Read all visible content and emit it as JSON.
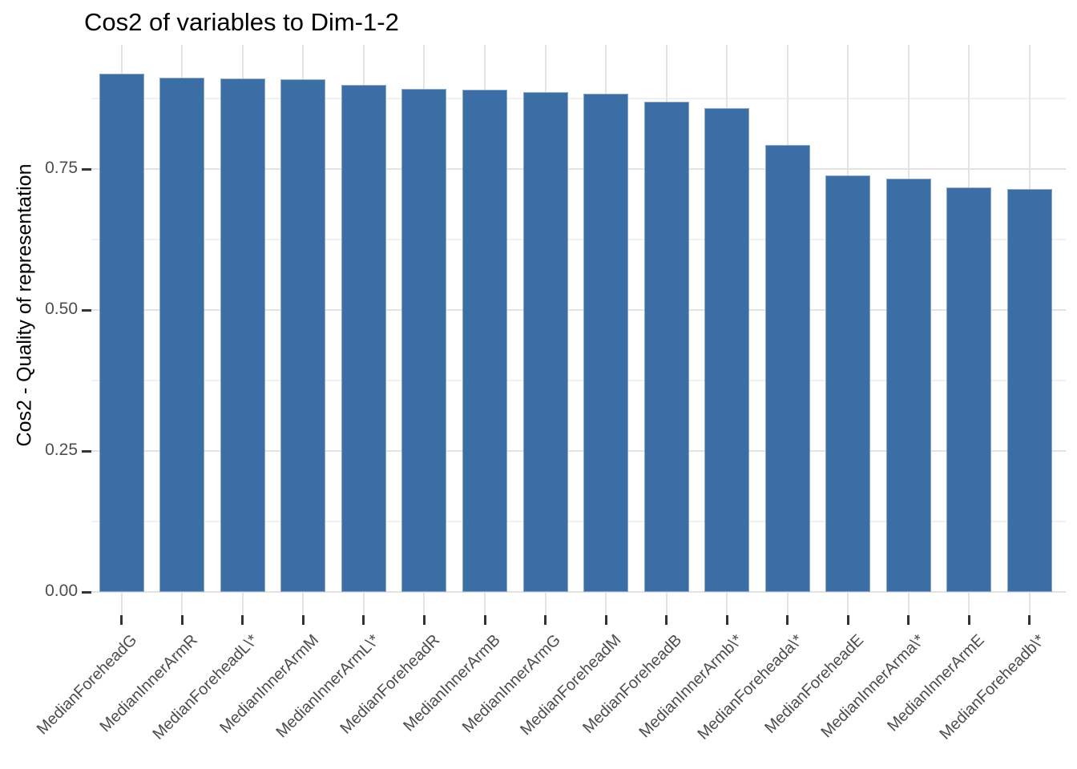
{
  "chart_data": {
    "type": "bar",
    "title": "Cos2 of variables to Dim-1-2",
    "xlabel": "",
    "ylabel": "Cos2 - Quality of representation",
    "categories": [
      "MedianForeheadG",
      "MedianInnerArmR",
      "MedianForeheadL\\*",
      "MedianInnerArmM",
      "MedianInnerArmL\\*",
      "MedianForeheadR",
      "MedianInnerArmB",
      "MedianInnerArmG",
      "MedianForeheadM",
      "MedianForeheadB",
      "MedianInnerArmb\\*",
      "MedianForeheada\\*",
      "MedianForeheadE",
      "MedianInnerArma\\*",
      "MedianInnerArmE",
      "MedianForeheadb\\*"
    ],
    "values": [
      0.919,
      0.912,
      0.911,
      0.909,
      0.899,
      0.892,
      0.891,
      0.887,
      0.884,
      0.87,
      0.858,
      0.792,
      0.739,
      0.733,
      0.717,
      0.715
    ],
    "ylim": [
      0,
      0.97
    ],
    "yticks": {
      "values": [
        0,
        0.25,
        0.5,
        0.75
      ],
      "labels": [
        "0.00",
        "0.25",
        "0.50",
        "0.75"
      ]
    },
    "minor_gridlines": [
      0.125,
      0.375,
      0.625,
      0.875
    ],
    "grid": "on",
    "legend": "none",
    "bar_orientation": "vertical",
    "sort_order": "descending"
  },
  "colors": {
    "bar_fill": "#3B6EA5",
    "bar_edge": "#8AA6C8",
    "grid_major": "#E3E3E3",
    "grid_minor": "#F0F0F0",
    "axis_tick": "#333333",
    "tick_label_text": "#4D4D4D",
    "title_text": "#000000",
    "background": "#FFFFFF"
  }
}
